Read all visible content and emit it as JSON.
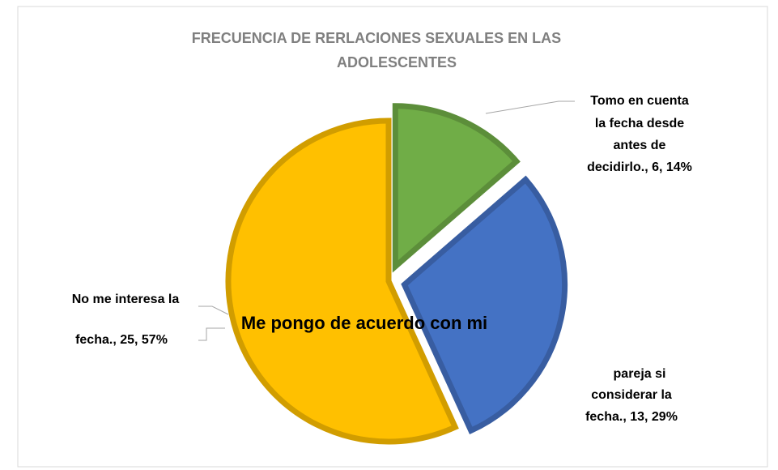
{
  "chart_data": {
    "type": "pie",
    "title": [
      "FRECUENCIA DE RERLACIONES SEXUALES EN LAS",
      "ADOLESCENTES"
    ],
    "values": [
      6,
      13,
      25
    ],
    "colors": [
      "#70ad47",
      "#4472c4",
      "#ffc000"
    ],
    "value_labels": [
      [
        "Tomo en cuenta",
        "la fecha desde",
        "antes de",
        "decidirlo., 6, 14%"
      ],
      [
        "Me pongo de acuerdo con mi",
        "pareja si",
        "considerar la",
        "fecha., 13, 29%"
      ],
      [
        "No me interesa la",
        "fecha., 25, 57%"
      ]
    ]
  }
}
